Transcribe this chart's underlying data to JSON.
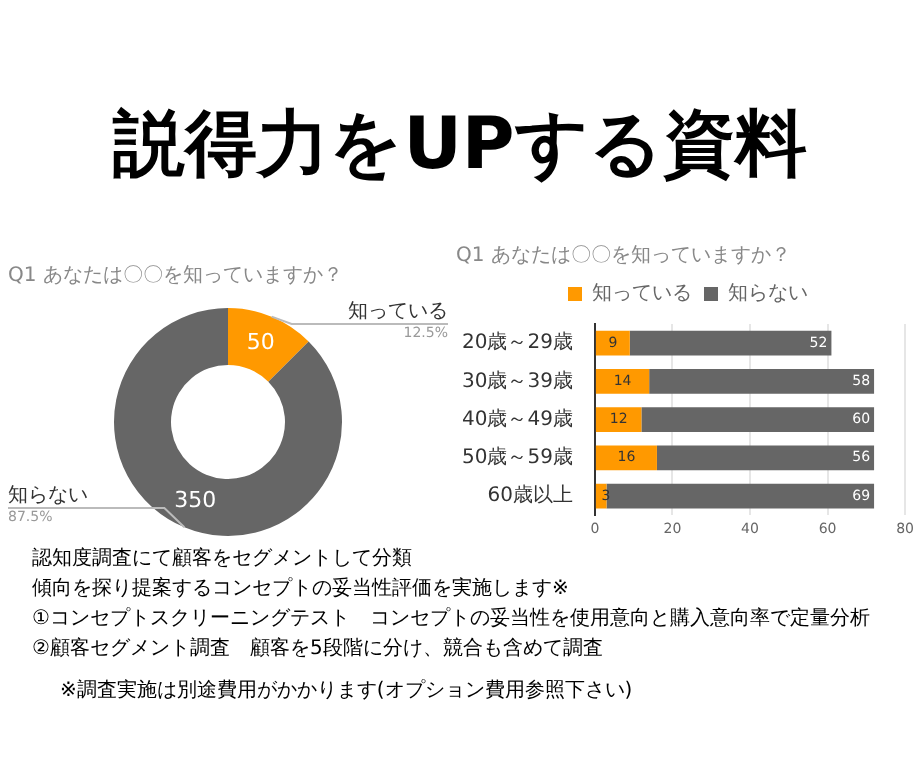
{
  "chart_data": [
    {
      "type": "other",
      "title": "説得力をUPする資料"
    },
    {
      "type": "donut",
      "title": "Q1 あなたは〇〇を知っていますか？",
      "categories": [
        "知っている",
        "知らない"
      ],
      "values": [
        50,
        350
      ],
      "colors": [
        "#ff9900",
        "#666666"
      ],
      "data_labels": true,
      "legend": false,
      "annotations": [
        "12.5%",
        "87.5%"
      ]
    },
    {
      "type": "bar",
      "title": "Q1 あなたは〇〇を知っていますか？",
      "orientation": "horizontal",
      "stacked": true,
      "categories": [
        "20歳～29歳",
        "30歳～39歳",
        "40歳～49歳",
        "50歳～59歳",
        "60歳以上"
      ],
      "series": [
        {
          "name": "知っている",
          "color": "#ff9900",
          "values": [
            9,
            14,
            12,
            16,
            3
          ]
        },
        {
          "name": "知らない",
          "color": "#666666",
          "values": [
            52,
            58,
            60,
            56,
            69
          ]
        }
      ],
      "xlim": [
        0,
        80
      ],
      "xticks": [
        0,
        20,
        40,
        60,
        80
      ],
      "grid": "x",
      "legend": "top",
      "data_labels": true
    },
    {
      "type": "other",
      "annotations": [
        "認知度調査にて顧客をセグメントして分類",
        "傾向を探り提案するコンセプトの妥当性評価を実施します※",
        "①コンセプトスクリーニングテスト　コンセプトの妥当性を使用意向と購入意向率で定量分析",
        "②顧客セグメント調査　顧客を5段階に分け、競合も含めて調査",
        "※調査実施は別途費用がかかります(オプション費用参照下さい)"
      ]
    }
  ]
}
